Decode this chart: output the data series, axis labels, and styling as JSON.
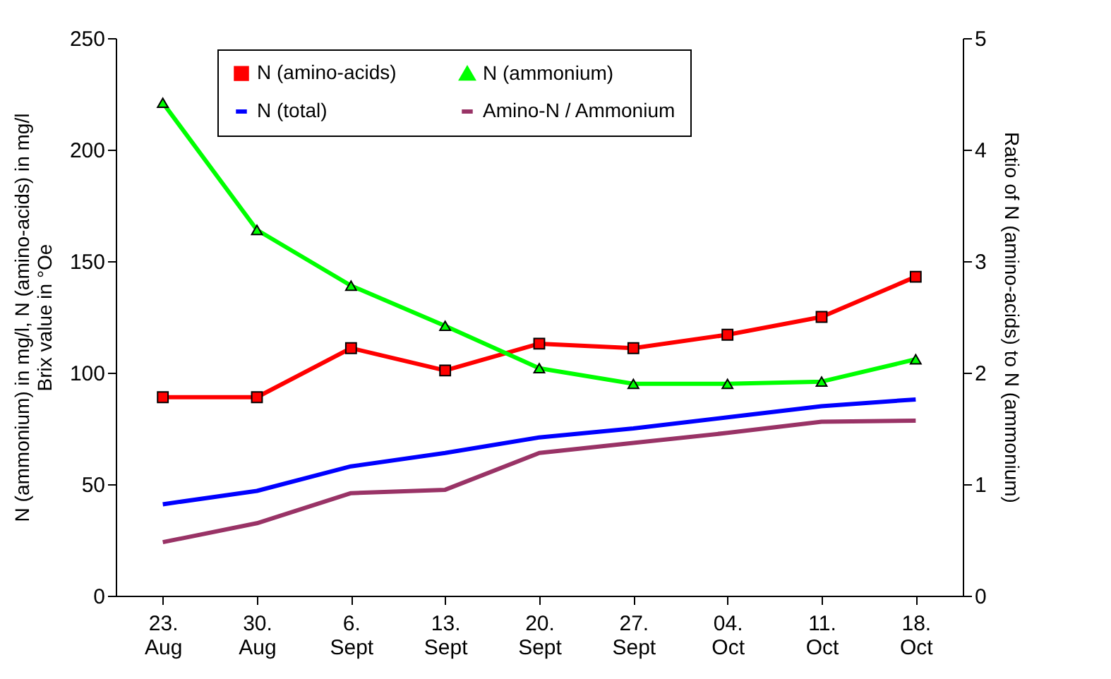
{
  "chart_data": {
    "type": "line",
    "categories": [
      "23. Aug",
      "30. Aug",
      "6. Sept",
      "13. Sept",
      "20. Sept",
      "27. Sept",
      "04. Oct",
      "11. Oct",
      "18. Oct"
    ],
    "ylabel": "N (ammonium) in mg/l, N (amino-acids) in mg/l\nBrix value in °Oe",
    "y2label": "Ratio of N (amino-acids) to N (ammonium)",
    "ylim": [
      0,
      250
    ],
    "yticks": [
      0,
      50,
      100,
      150,
      200,
      250
    ],
    "y2lim": [
      0,
      5
    ],
    "y2ticks": [
      0,
      1,
      2,
      3,
      4,
      5
    ],
    "grid": false,
    "legend": "top",
    "series": [
      {
        "name": "N (amino-acids)",
        "color": "#ff0000",
        "marker": "square",
        "values": [
          89,
          89,
          111,
          101,
          113,
          111,
          117,
          125,
          143
        ]
      },
      {
        "name": "N (ammonium)",
        "color": "#00ff00",
        "marker": "triangle",
        "values": [
          221,
          164,
          139,
          121,
          102,
          95,
          95,
          96,
          106
        ]
      },
      {
        "name": "N (total)",
        "color": "#0000ff",
        "marker": "none",
        "values": [
          41,
          47,
          58,
          64,
          71,
          75,
          80,
          85,
          88
        ]
      },
      {
        "name": "Amino-N / Ammonium",
        "color": "#993366",
        "marker": "none",
        "axis": "y2",
        "values": [
          0.48,
          0.65,
          0.92,
          0.95,
          1.28,
          1.37,
          1.46,
          1.56,
          1.57
        ]
      }
    ]
  }
}
